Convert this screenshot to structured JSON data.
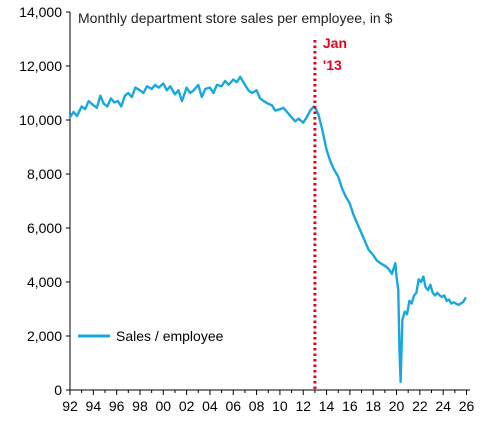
{
  "chart_data": {
    "type": "line",
    "title": "Monthly department store sales per employee, in $",
    "xlabel": "",
    "ylabel": "",
    "xlim": [
      1992,
      2026.3
    ],
    "ylim": [
      0,
      14000
    ],
    "y_ticks": [
      {
        "value": 0,
        "label": "0"
      },
      {
        "value": 2000,
        "label": "2,000"
      },
      {
        "value": 4000,
        "label": "4,000"
      },
      {
        "value": 6000,
        "label": "6,000"
      },
      {
        "value": 8000,
        "label": "8,000"
      },
      {
        "value": 10000,
        "label": "10,000"
      },
      {
        "value": 12000,
        "label": "12,000"
      },
      {
        "value": 14000,
        "label": "14,000"
      }
    ],
    "x_ticks": [
      {
        "value": 1992,
        "label": "92"
      },
      {
        "value": 1994,
        "label": "94"
      },
      {
        "value": 1996,
        "label": "96"
      },
      {
        "value": 1998,
        "label": "98"
      },
      {
        "value": 2000,
        "label": "00"
      },
      {
        "value": 2002,
        "label": "02"
      },
      {
        "value": 2004,
        "label": "04"
      },
      {
        "value": 2006,
        "label": "06"
      },
      {
        "value": 2008,
        "label": "08"
      },
      {
        "value": 2010,
        "label": "10"
      },
      {
        "value": 2012,
        "label": "12"
      },
      {
        "value": 2014,
        "label": "14"
      },
      {
        "value": 2016,
        "label": "16"
      },
      {
        "value": 2018,
        "label": "18"
      },
      {
        "value": 2020,
        "label": "20"
      },
      {
        "value": 2022,
        "label": "22"
      },
      {
        "value": 2024,
        "label": "24"
      },
      {
        "value": 2026,
        "label": "26"
      }
    ],
    "grid": false,
    "legend": {
      "position": "bottom-left"
    },
    "series": [
      {
        "name": "Sales / employee",
        "color": "#18a8e0",
        "x": [
          1992.0,
          1992.3,
          1992.6,
          1993.0,
          1993.3,
          1993.6,
          1994.0,
          1994.3,
          1994.6,
          1994.9,
          1995.2,
          1995.5,
          1995.8,
          1996.1,
          1996.4,
          1996.7,
          1997.0,
          1997.3,
          1997.6,
          1998.0,
          1998.3,
          1998.6,
          1999.0,
          1999.3,
          1999.6,
          2000.0,
          2000.3,
          2000.6,
          2001.0,
          2001.3,
          2001.6,
          2002.0,
          2002.3,
          2002.6,
          2003.0,
          2003.3,
          2003.6,
          2004.0,
          2004.3,
          2004.6,
          2005.0,
          2005.3,
          2005.6,
          2006.0,
          2006.3,
          2006.6,
          2007.0,
          2007.3,
          2007.6,
          2008.0,
          2008.3,
          2008.6,
          2009.0,
          2009.3,
          2009.6,
          2010.0,
          2010.3,
          2010.6,
          2011.0,
          2011.3,
          2011.6,
          2012.0,
          2012.3,
          2012.6,
          2012.9,
          2013.1,
          2013.3,
          2013.6,
          2014.0,
          2014.3,
          2014.6,
          2015.0,
          2015.3,
          2015.6,
          2016.0,
          2016.3,
          2016.6,
          2017.0,
          2017.3,
          2017.6,
          2018.0,
          2018.3,
          2018.6,
          2019.0,
          2019.3,
          2019.6,
          2019.9,
          2020.0,
          2020.15,
          2020.25,
          2020.35,
          2020.5,
          2020.7,
          2020.9,
          2021.1,
          2021.3,
          2021.5,
          2021.7,
          2021.9,
          2022.1,
          2022.3,
          2022.5,
          2022.7,
          2022.9,
          2023.1,
          2023.3,
          2023.5,
          2023.7,
          2023.9,
          2024.1,
          2024.3,
          2024.5,
          2024.7,
          2024.9,
          2025.1,
          2025.3,
          2025.5,
          2025.7,
          2025.9
        ],
        "y": [
          10100,
          10300,
          10150,
          10500,
          10400,
          10700,
          10550,
          10450,
          10900,
          10600,
          10500,
          10800,
          10650,
          10700,
          10500,
          10900,
          11000,
          10850,
          11200,
          11100,
          11000,
          11250,
          11150,
          11300,
          11200,
          11350,
          11100,
          11250,
          10950,
          11100,
          10700,
          11200,
          11000,
          11100,
          11300,
          10850,
          11150,
          11200,
          11000,
          11300,
          11250,
          11450,
          11300,
          11500,
          11400,
          11600,
          11300,
          11100,
          11000,
          11100,
          10800,
          10700,
          10600,
          10550,
          10350,
          10400,
          10450,
          10300,
          10100,
          9950,
          10050,
          9900,
          10100,
          10350,
          10500,
          10400,
          10200,
          9700,
          8900,
          8500,
          8200,
          7900,
          7500,
          7200,
          6900,
          6500,
          6200,
          5800,
          5500,
          5200,
          5000,
          4800,
          4700,
          4600,
          4500,
          4300,
          4700,
          4200,
          3700,
          1500,
          300,
          2600,
          2900,
          2800,
          3300,
          3200,
          3500,
          3600,
          4100,
          4000,
          4200,
          3800,
          3700,
          3900,
          3600,
          3500,
          3600,
          3500,
          3450,
          3500,
          3300,
          3350,
          3200,
          3250,
          3200,
          3150,
          3200,
          3250,
          3400
        ]
      }
    ],
    "annotations": [
      {
        "type": "vline",
        "x": 2013.0,
        "color": "#e8001c",
        "style": "dotted",
        "label_lines": [
          "Jan",
          "'13"
        ]
      }
    ]
  }
}
